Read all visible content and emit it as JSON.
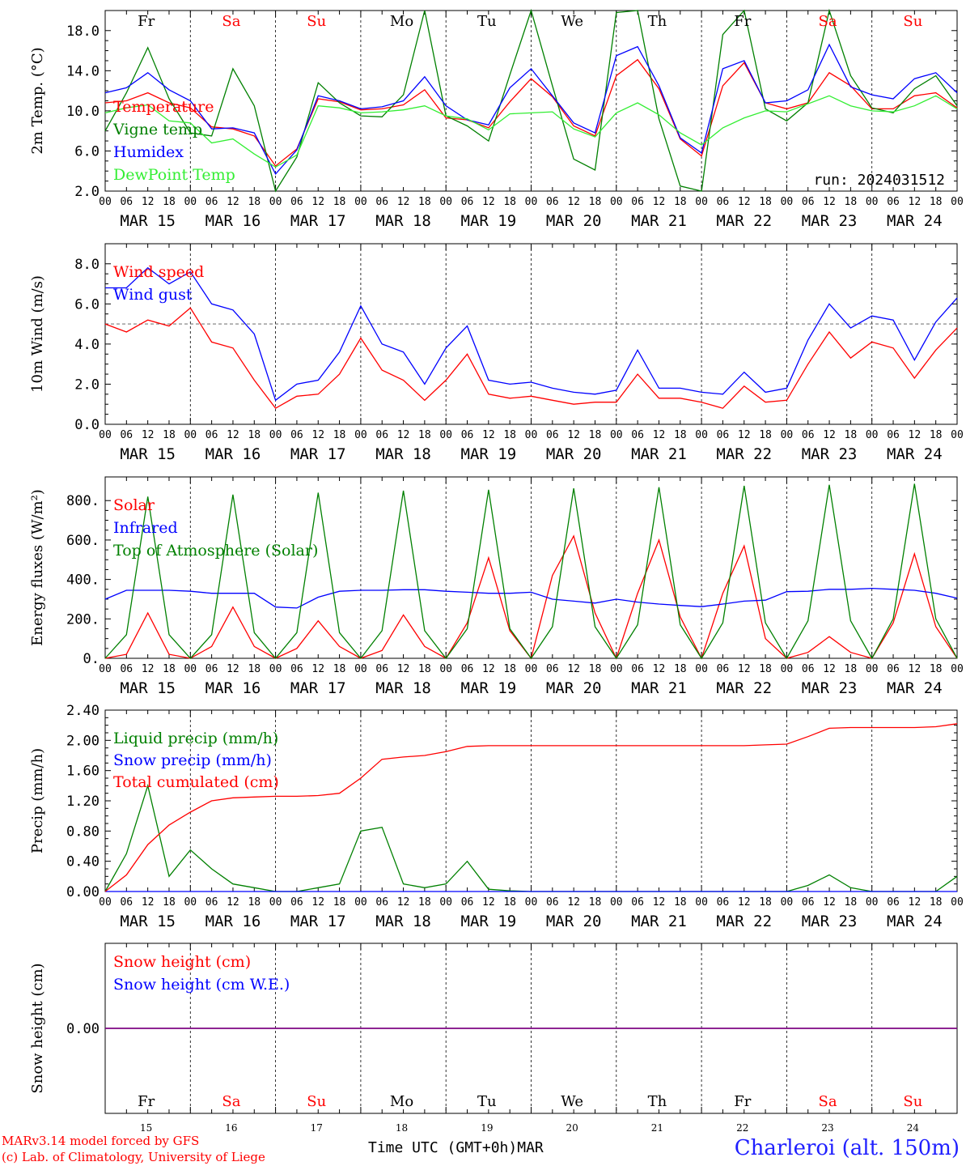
{
  "colors": {
    "red": "#ff0000",
    "green": "#008000",
    "blue": "#0000ff",
    "lightgreen": "#33ee33",
    "purple": "#7f007f",
    "station": "#2020ff"
  },
  "x_axis": {
    "hour_ticks": [
      "00",
      "06",
      "12",
      "18"
    ],
    "days": [
      "MAR 15",
      "MAR 16",
      "MAR 17",
      "MAR 18",
      "MAR 19",
      "MAR 20",
      "MAR 21",
      "MAR 22",
      "MAR 23",
      "MAR 24"
    ],
    "weekdays": [
      "Fr",
      "Sa",
      "Su",
      "Mo",
      "Tu",
      "We",
      "Th",
      "Fr",
      "Sa",
      "Su"
    ],
    "weekday_colors": [
      "#000000",
      "#ff0000",
      "#ff0000",
      "#000000",
      "#000000",
      "#000000",
      "#000000",
      "#000000",
      "#ff0000",
      "#ff0000"
    ],
    "day_numbers": [
      "15",
      "16",
      "17",
      "18",
      "19",
      "20",
      "21",
      "22",
      "23",
      "24"
    ],
    "end_tick": "00",
    "title": "Time UTC (GMT+0h)",
    "month": "MAR"
  },
  "footer": {
    "model": "MARv3.14 model forced by GFS",
    "copyright": "(c) Lab. of Climatology, University of Liege",
    "station": "Charleroi (alt. 150m)"
  },
  "chart_data": [
    {
      "type": "line",
      "ylabel": "2m Temp. (°C)",
      "ylim": [
        2,
        20
      ],
      "yticks": [
        "2.0",
        "6.0",
        "10.0",
        "14.0",
        "18.0"
      ],
      "annotation": "run: 2024031512",
      "x_hours": [
        0,
        6,
        12,
        18,
        24,
        30,
        36,
        42,
        48,
        54,
        60,
        66,
        72,
        78,
        84,
        90,
        96,
        102,
        108,
        114,
        120,
        126,
        132,
        138,
        144,
        150,
        156,
        162,
        168,
        174,
        180,
        186,
        192,
        198,
        204,
        210,
        216,
        222,
        228,
        234,
        240
      ],
      "series": [
        {
          "name": "Temperature",
          "color": "#ff0000",
          "values": [
            10.8,
            11,
            11.8,
            10.8,
            10.3,
            8.4,
            8.2,
            7.5,
            4.5,
            6.2,
            11.2,
            10.9,
            10.1,
            10.2,
            10.6,
            12.1,
            9.3,
            9.1,
            8.3,
            10.9,
            13.2,
            11.4,
            8.5,
            7.5,
            13.5,
            15.1,
            12.2,
            7.2,
            5.5,
            12.5,
            14.8,
            10.8,
            10.2,
            10.8,
            13.8,
            12.5,
            10.2,
            10.2,
            11.5,
            11.8,
            10.3
          ]
        },
        {
          "name": "Vigne temp",
          "color": "#008000",
          "values": [
            8,
            11.8,
            16.3,
            11.2,
            7.8,
            7.5,
            14.2,
            10.5,
            0.5,
            5.4,
            12.8,
            10.8,
            9.5,
            9.4,
            11.6,
            20.6,
            9.5,
            8.5,
            7,
            13.6,
            20.8,
            12.5,
            5.2,
            4.1,
            19.8,
            22.5,
            9.2,
            2.5,
            1.8,
            17.6,
            21,
            10.2,
            9,
            10.8,
            22,
            13.5,
            10.3,
            9.8,
            12.2,
            13.5,
            10.5
          ]
        },
        {
          "name": "Humidex",
          "color": "#0000ff",
          "values": [
            11.8,
            12.3,
            13.8,
            12.1,
            11,
            8.2,
            8.3,
            7.8,
            3.7,
            6.1,
            11.5,
            11,
            10.2,
            10.4,
            11,
            13.4,
            10.5,
            9.1,
            8.6,
            12.3,
            14.2,
            11.5,
            8.8,
            7.8,
            15.5,
            16.4,
            12.5,
            7.3,
            5.8,
            14.2,
            15,
            10.8,
            11,
            12.1,
            16.6,
            12.4,
            11.6,
            11.2,
            13.2,
            13.8,
            11.8
          ]
        },
        {
          "name": "DewPoint Temp",
          "color": "#33ee33",
          "values": [
            9.8,
            10.3,
            10.6,
            9,
            8.8,
            6.8,
            7.2,
            5.7,
            4.4,
            5.6,
            10.5,
            10.3,
            9.8,
            9.9,
            10.1,
            10.5,
            9.5,
            9.2,
            8.1,
            9.7,
            9.8,
            9.9,
            8.2,
            7.4,
            9.8,
            10.8,
            9.6,
            7.8,
            6.6,
            8.3,
            9.3,
            10,
            9.9,
            10.7,
            11.5,
            10.5,
            10,
            9.9,
            10.5,
            11.5,
            10.2
          ]
        }
      ]
    },
    {
      "type": "line",
      "ylabel": "10m Wind (m/s)",
      "ylim": [
        0,
        9
      ],
      "yticks": [
        "0.0",
        "2.0",
        "4.0",
        "6.0",
        "8.0"
      ],
      "ref_line": 5,
      "x_hours": [
        0,
        6,
        12,
        18,
        24,
        30,
        36,
        42,
        48,
        54,
        60,
        66,
        72,
        78,
        84,
        90,
        96,
        102,
        108,
        114,
        120,
        126,
        132,
        138,
        144,
        150,
        156,
        162,
        168,
        174,
        180,
        186,
        192,
        198,
        204,
        210,
        216,
        222,
        228,
        234,
        240
      ],
      "series": [
        {
          "name": "Wind speed",
          "color": "#ff0000",
          "values": [
            5,
            4.6,
            5.2,
            4.9,
            5.8,
            4.1,
            3.8,
            2.2,
            0.8,
            1.4,
            1.5,
            2.5,
            4.3,
            2.7,
            2.2,
            1.2,
            2.2,
            3.5,
            1.5,
            1.3,
            1.4,
            1.2,
            1,
            1.1,
            1.1,
            2.5,
            1.3,
            1.3,
            1.1,
            0.8,
            1.9,
            1.1,
            1.2,
            3,
            4.6,
            3.3,
            4.1,
            3.8,
            2.3,
            3.7,
            4.8
          ]
        },
        {
          "name": "Wind gust",
          "color": "#0000ff",
          "values": [
            6.8,
            6.8,
            7.8,
            7,
            7.6,
            6,
            5.7,
            4.5,
            1.2,
            2,
            2.2,
            3.6,
            5.9,
            4,
            3.6,
            2,
            3.8,
            4.9,
            2.2,
            2,
            2.1,
            1.8,
            1.6,
            1.5,
            1.7,
            3.7,
            1.8,
            1.8,
            1.6,
            1.5,
            2.6,
            1.6,
            1.8,
            4.2,
            6,
            4.8,
            5.4,
            5.2,
            3.2,
            5.1,
            6.3
          ]
        }
      ]
    },
    {
      "type": "line",
      "ylabel": "Energy fluxes (W/m²)",
      "ylim": [
        0,
        920
      ],
      "yticks": [
        "0.",
        "200.",
        "400.",
        "600.",
        "800."
      ],
      "x_hours": [
        0,
        6,
        12,
        18,
        24,
        30,
        36,
        42,
        48,
        54,
        60,
        66,
        72,
        78,
        84,
        90,
        96,
        102,
        108,
        114,
        120,
        126,
        132,
        138,
        144,
        150,
        156,
        162,
        168,
        174,
        180,
        186,
        192,
        198,
        204,
        210,
        216,
        222,
        228,
        234,
        240
      ],
      "series": [
        {
          "name": "Solar",
          "color": "#ff0000",
          "values": [
            0,
            20,
            230,
            20,
            0,
            60,
            260,
            60,
            0,
            50,
            190,
            60,
            0,
            40,
            220,
            60,
            0,
            180,
            510,
            140,
            0,
            420,
            620,
            230,
            0,
            330,
            600,
            210,
            0,
            330,
            570,
            100,
            0,
            30,
            110,
            30,
            0,
            180,
            530,
            160,
            0
          ]
        },
        {
          "name": "Infrared",
          "color": "#0000ff",
          "values": [
            300,
            345,
            345,
            345,
            340,
            330,
            330,
            330,
            260,
            255,
            310,
            340,
            345,
            345,
            348,
            348,
            340,
            335,
            330,
            330,
            335,
            300,
            290,
            280,
            300,
            285,
            275,
            268,
            262,
            275,
            290,
            295,
            338,
            340,
            350,
            350,
            355,
            350,
            345,
            330,
            305
          ]
        },
        {
          "name": "Top of Atmosphere (Solar)",
          "color": "#008000",
          "values": [
            0,
            120,
            820,
            120,
            0,
            120,
            830,
            130,
            0,
            130,
            840,
            130,
            0,
            140,
            850,
            140,
            0,
            150,
            855,
            150,
            0,
            160,
            862,
            160,
            0,
            170,
            868,
            170,
            0,
            180,
            875,
            180,
            0,
            190,
            880,
            190,
            0,
            200,
            885,
            200,
            0
          ]
        }
      ]
    },
    {
      "type": "line",
      "ylabel": "Precip (mm/h)",
      "ylim": [
        0,
        2.4
      ],
      "yticks": [
        "0.00",
        "0.40",
        "0.80",
        "1.20",
        "1.60",
        "2.00",
        "2.40"
      ],
      "x_hours": [
        0,
        6,
        12,
        18,
        24,
        30,
        36,
        42,
        48,
        54,
        60,
        66,
        72,
        78,
        84,
        90,
        96,
        102,
        108,
        114,
        120,
        126,
        132,
        138,
        144,
        150,
        156,
        162,
        168,
        174,
        180,
        186,
        192,
        198,
        204,
        210,
        216,
        222,
        228,
        234,
        240
      ],
      "series": [
        {
          "name": "Liquid precip (mm/h)",
          "color": "#008000",
          "values": [
            0,
            0.5,
            1.4,
            0.2,
            0.55,
            0.3,
            0.1,
            0.05,
            0,
            0,
            0.05,
            0.1,
            0.8,
            0.85,
            0.1,
            0.05,
            0.1,
            0.4,
            0.03,
            0.01,
            0,
            0,
            0,
            0,
            0,
            0,
            0,
            0,
            0,
            0,
            0,
            0,
            0,
            0.08,
            0.22,
            0.05,
            0,
            0,
            0,
            0,
            0.2
          ]
        },
        {
          "name": "Snow precip (mm/h)",
          "color": "#0000ff",
          "values": [
            0,
            0,
            0,
            0,
            0,
            0,
            0,
            0,
            0,
            0,
            0,
            0,
            0,
            0,
            0,
            0,
            0,
            0,
            0,
            0,
            0,
            0,
            0,
            0,
            0,
            0,
            0,
            0,
            0,
            0,
            0,
            0,
            0,
            0,
            0,
            0,
            0,
            0,
            0,
            0,
            0
          ]
        },
        {
          "name": "Total cumulated (cm)",
          "color": "#ff0000",
          "values": [
            0,
            0.22,
            0.62,
            0.88,
            1.05,
            1.2,
            1.24,
            1.25,
            1.26,
            1.26,
            1.27,
            1.3,
            1.5,
            1.75,
            1.78,
            1.8,
            1.85,
            1.92,
            1.93,
            1.93,
            1.93,
            1.93,
            1.93,
            1.93,
            1.93,
            1.93,
            1.93,
            1.93,
            1.93,
            1.93,
            1.93,
            1.94,
            1.95,
            2.05,
            2.16,
            2.17,
            2.17,
            2.17,
            2.17,
            2.18,
            2.22
          ]
        }
      ]
    },
    {
      "type": "line",
      "ylabel": "Snow height (cm)",
      "ylim": [
        -1,
        1
      ],
      "yticks": [
        "0.00"
      ],
      "x_hours": [
        0,
        240
      ],
      "series": [
        {
          "name": "Snow height (cm)",
          "color": "#ff0000",
          "values": [
            0,
            0
          ]
        },
        {
          "name": "Snow height (cm W.E.)",
          "color": "#0000ff",
          "values": [
            0,
            0
          ]
        }
      ]
    }
  ]
}
